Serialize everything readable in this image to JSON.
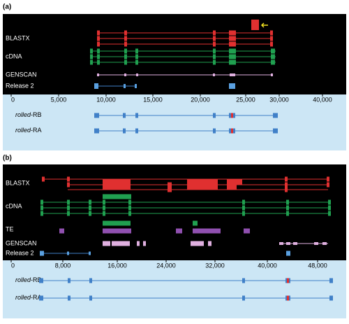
{
  "panels": [
    {
      "label": "(a)",
      "tracks": [
        "BLASTX",
        "cDNA",
        "GENSCAN",
        "Release 2"
      ],
      "axis_ticks": [
        "0",
        "5,000",
        "10,000",
        "15,000",
        "20,000",
        "25,000",
        "30,000",
        "40,000"
      ],
      "transcripts": [
        {
          "gene": "rolled",
          "suffix": "-RB"
        },
        {
          "gene": "rolled",
          "suffix": "-RA"
        }
      ]
    },
    {
      "label": "(b)",
      "tracks": [
        "BLASTX",
        "cDNA",
        "TE",
        "GENSCAN",
        "Release 2"
      ],
      "axis_ticks": [
        "0",
        "8,000",
        "16,000",
        "24,000",
        "32,000",
        "40,000",
        "48,000"
      ],
      "transcripts": [
        {
          "gene": "rolled",
          "suffix": "-RB"
        },
        {
          "gene": "rolled",
          "suffix": "-RA"
        }
      ]
    }
  ]
}
